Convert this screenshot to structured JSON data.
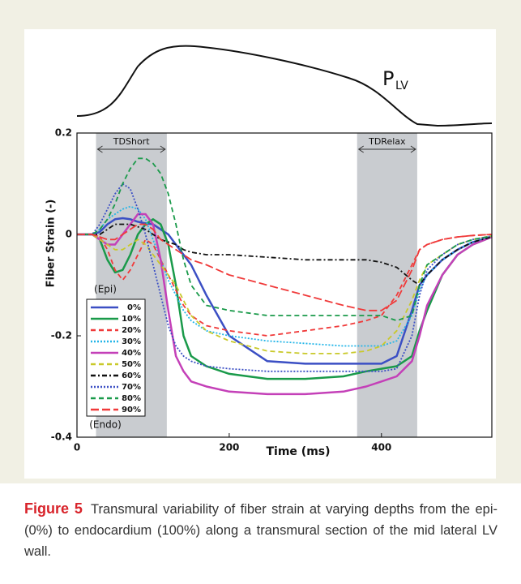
{
  "chart_data": {
    "type": "line",
    "pressure_label": {
      "text": "P",
      "subscript": "LV"
    },
    "x_label": "Time (ms)",
    "y_label": "Fiber Strain (-)",
    "xlim": [
      0,
      545
    ],
    "ylim": [
      -0.4,
      0.2
    ],
    "xticks": [
      0,
      200,
      400
    ],
    "yticks": [
      0.2,
      0,
      -0.2,
      -0.4
    ],
    "bands": [
      {
        "label": "TDShort",
        "range": [
          25,
          118
        ]
      },
      {
        "label": "TDRelax",
        "range": [
          368,
          447
        ]
      }
    ],
    "annotations": {
      "epi": "(Epi)",
      "endo": "(Endo)"
    },
    "x": [
      0,
      20,
      30,
      40,
      50,
      60,
      70,
      80,
      90,
      100,
      110,
      120,
      130,
      140,
      150,
      170,
      200,
      250,
      300,
      350,
      380,
      400,
      420,
      440,
      450,
      460,
      480,
      500,
      520,
      545
    ],
    "series": [
      {
        "name": "0%",
        "color": "#3b4fc4",
        "style": "solid",
        "values": [
          0,
          0,
          0.005,
          0.02,
          0.03,
          0.032,
          0.03,
          0.025,
          0.022,
          0.02,
          0.01,
          0,
          -0.02,
          -0.04,
          -0.06,
          -0.12,
          -0.2,
          -0.25,
          -0.255,
          -0.255,
          -0.255,
          -0.255,
          -0.24,
          -0.15,
          -0.1,
          -0.08,
          -0.05,
          -0.03,
          -0.015,
          -0.005
        ]
      },
      {
        "name": "10%",
        "color": "#1a9a4a",
        "style": "solid",
        "values": [
          0,
          0,
          -0.01,
          -0.05,
          -0.075,
          -0.07,
          -0.04,
          0,
          0.02,
          0.03,
          0.02,
          -0.02,
          -0.1,
          -0.2,
          -0.24,
          -0.26,
          -0.275,
          -0.285,
          -0.285,
          -0.28,
          -0.27,
          -0.265,
          -0.26,
          -0.24,
          -0.19,
          -0.15,
          -0.08,
          -0.04,
          -0.02,
          -0.005
        ]
      },
      {
        "name": "20%",
        "color": "#f03a3a",
        "style": "dashed",
        "values": [
          0,
          0,
          -0.005,
          -0.03,
          -0.07,
          -0.09,
          -0.07,
          -0.04,
          -0.01,
          -0.02,
          -0.05,
          -0.08,
          -0.11,
          -0.14,
          -0.16,
          -0.18,
          -0.19,
          -0.2,
          -0.19,
          -0.18,
          -0.17,
          -0.16,
          -0.12,
          -0.06,
          -0.03,
          -0.02,
          -0.01,
          -0.005,
          -0.002,
          0
        ]
      },
      {
        "name": "30%",
        "color": "#22b5e8",
        "style": "dotted",
        "values": [
          0,
          0,
          0.01,
          0.03,
          0.04,
          0.05,
          0.055,
          0.05,
          0.03,
          -0.01,
          -0.05,
          -0.09,
          -0.12,
          -0.15,
          -0.17,
          -0.19,
          -0.2,
          -0.21,
          -0.215,
          -0.22,
          -0.22,
          -0.22,
          -0.21,
          -0.16,
          -0.11,
          -0.08,
          -0.05,
          -0.03,
          -0.015,
          -0.005
        ]
      },
      {
        "name": "40%",
        "color": "#c440b8",
        "style": "solid",
        "values": [
          0,
          0,
          -0.01,
          -0.02,
          -0.02,
          0,
          0.02,
          0.04,
          0.04,
          0.02,
          -0.05,
          -0.15,
          -0.24,
          -0.27,
          -0.29,
          -0.3,
          -0.31,
          -0.315,
          -0.315,
          -0.31,
          -0.3,
          -0.29,
          -0.28,
          -0.25,
          -0.2,
          -0.14,
          -0.08,
          -0.04,
          -0.02,
          -0.005
        ]
      },
      {
        "name": "50%",
        "color": "#c9c92a",
        "style": "dashed",
        "values": [
          0,
          0,
          -0.01,
          -0.02,
          -0.03,
          -0.03,
          -0.02,
          -0.01,
          -0.02,
          -0.04,
          -0.06,
          -0.08,
          -0.1,
          -0.13,
          -0.16,
          -0.19,
          -0.21,
          -0.23,
          -0.235,
          -0.235,
          -0.23,
          -0.22,
          -0.19,
          -0.13,
          -0.09,
          -0.06,
          -0.04,
          -0.02,
          -0.01,
          -0.003
        ]
      },
      {
        "name": "60%",
        "color": "#111111",
        "style": "dashdot",
        "values": [
          0,
          0,
          0,
          0.01,
          0.02,
          0.02,
          0.02,
          0.015,
          0.01,
          0,
          -0.01,
          -0.015,
          -0.02,
          -0.03,
          -0.035,
          -0.04,
          -0.04,
          -0.045,
          -0.05,
          -0.05,
          -0.05,
          -0.055,
          -0.065,
          -0.09,
          -0.1,
          -0.08,
          -0.05,
          -0.03,
          -0.015,
          -0.005
        ]
      },
      {
        "name": "70%",
        "color": "#3b4fc4",
        "style": "dotted",
        "values": [
          0,
          0,
          0.02,
          0.05,
          0.08,
          0.1,
          0.09,
          0.05,
          0,
          -0.06,
          -0.12,
          -0.18,
          -0.22,
          -0.24,
          -0.25,
          -0.26,
          -0.265,
          -0.27,
          -0.27,
          -0.27,
          -0.27,
          -0.27,
          -0.265,
          -0.2,
          -0.12,
          -0.07,
          -0.04,
          -0.02,
          -0.01,
          -0.003
        ]
      },
      {
        "name": "80%",
        "color": "#1a9a4a",
        "style": "dashed",
        "values": [
          0,
          0,
          0.01,
          0.03,
          0.06,
          0.1,
          0.13,
          0.15,
          0.15,
          0.14,
          0.12,
          0.08,
          0.02,
          -0.05,
          -0.1,
          -0.14,
          -0.15,
          -0.16,
          -0.16,
          -0.16,
          -0.16,
          -0.16,
          -0.17,
          -0.16,
          -0.1,
          -0.06,
          -0.04,
          -0.02,
          -0.01,
          -0.003
        ]
      },
      {
        "name": "90%",
        "color": "#f03a3a",
        "style": "longdash",
        "values": [
          0,
          0,
          -0.005,
          -0.01,
          -0.01,
          0,
          0.01,
          0.02,
          0.02,
          0.01,
          -0.01,
          -0.02,
          -0.03,
          -0.04,
          -0.05,
          -0.06,
          -0.08,
          -0.1,
          -0.12,
          -0.14,
          -0.15,
          -0.15,
          -0.13,
          -0.07,
          -0.03,
          -0.02,
          -0.01,
          -0.005,
          -0.002,
          0
        ]
      }
    ],
    "caption": {
      "label": "Figure 5",
      "text": "Transmural variability of fiber strain at varying depths from the epi- (0%) to endocardium (100%) along a transmural section of the mid lateral LV wall."
    }
  }
}
